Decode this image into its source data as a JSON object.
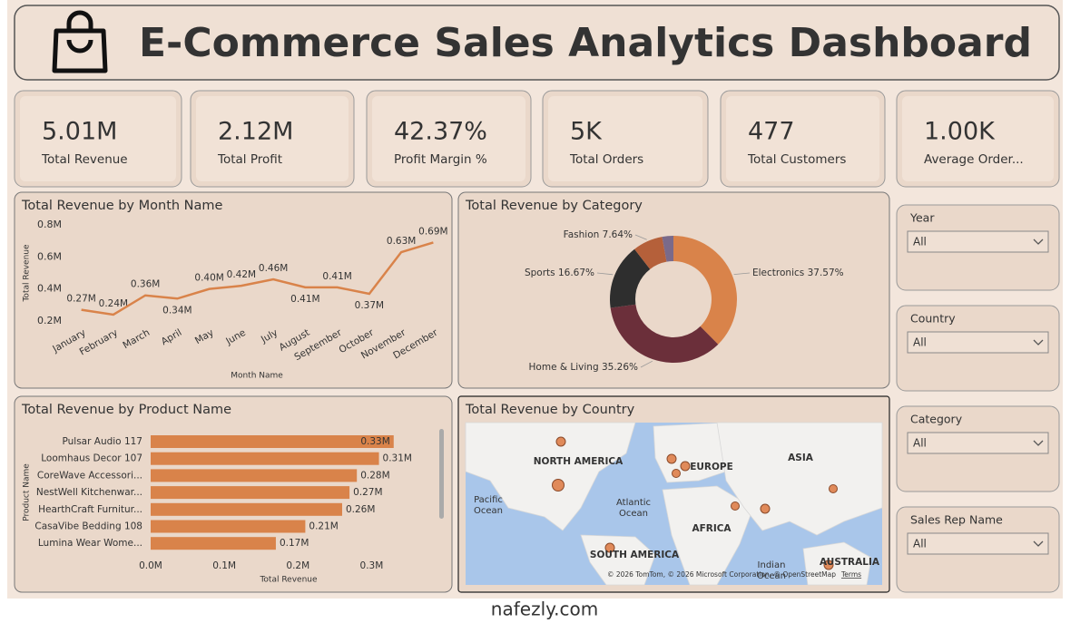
{
  "header": {
    "title": "E-Commerce Sales Analytics Dashboard"
  },
  "kpis": [
    {
      "value": "5.01M",
      "label": "Total Revenue"
    },
    {
      "value": "2.12M",
      "label": "Total Profit"
    },
    {
      "value": "42.37%",
      "label": "Profit Margin %"
    },
    {
      "value": "5K",
      "label": "Total Orders"
    },
    {
      "value": "477",
      "label": "Total Customers"
    },
    {
      "value": "1.00K",
      "label": "Average Order..."
    }
  ],
  "chart_data": [
    {
      "type": "line",
      "title": "Total Revenue by Month Name",
      "x_label": "Month Name",
      "y_label": "Total Revenue",
      "categories": [
        "January",
        "February",
        "March",
        "April",
        "May",
        "June",
        "July",
        "August",
        "September",
        "October",
        "November",
        "December"
      ],
      "values": [
        0.27,
        0.24,
        0.36,
        0.34,
        0.4,
        0.42,
        0.46,
        0.41,
        0.41,
        0.37,
        0.63,
        0.69
      ],
      "value_labels": [
        "0.27M",
        "0.24M",
        "0.36M",
        "0.34M",
        "0.40M",
        "0.42M",
        "0.46M",
        "0.41M",
        "0.41M",
        "0.37M",
        "0.63M",
        "0.69M"
      ],
      "color": "#d9834a",
      "ylim": [
        0.2,
        0.8
      ],
      "yticks": [
        {
          "value": 0.2,
          "label": "0.2M"
        },
        {
          "value": 0.4,
          "label": "0.4M"
        },
        {
          "value": 0.6,
          "label": "0.6M"
        },
        {
          "value": 0.8,
          "label": "0.8M"
        }
      ],
      "grid": false
    },
    {
      "type": "donut",
      "title": "Total Revenue by Category",
      "categories": [
        "Electronics",
        "Home & Living",
        "Sports",
        "Fashion",
        null
      ],
      "values": [
        37.57,
        35.26,
        16.67,
        7.64,
        2.86
      ],
      "value_labels": [
        "37.57%",
        "35.26%",
        "16.67%",
        "7.64%",
        null
      ],
      "colors": [
        "#d9834a",
        "#6b2f3a",
        "#2e2e2e",
        "#b5603a",
        "#7a6a8a"
      ]
    },
    {
      "type": "hbar",
      "title": "Total Revenue by Product Name",
      "x_label": "Total Revenue",
      "y_label": "Product Name",
      "categories": [
        "Pulsar Audio 117",
        "Loomhaus Decor 107",
        "CoreWave Accessori...",
        "NestWell Kitchenwar...",
        "HearthCraft Furnitur...",
        "CasaVibe Bedding 108",
        "Lumina Wear Wome..."
      ],
      "values": [
        0.33,
        0.31,
        0.28,
        0.27,
        0.26,
        0.21,
        0.17
      ],
      "value_labels": [
        "0.33M",
        "0.31M",
        "0.28M",
        "0.27M",
        "0.26M",
        "0.21M",
        "0.17M"
      ],
      "color": "#d9834a",
      "xlim": [
        0,
        0.35
      ],
      "xticks": [
        {
          "value": 0,
          "label": "0.0M"
        },
        {
          "value": 0.1,
          "label": "0.1M"
        },
        {
          "value": 0.2,
          "label": "0.2M"
        },
        {
          "value": 0.3,
          "label": "0.3M"
        }
      ]
    }
  ],
  "map": {
    "title": "Total Revenue by Country",
    "labels": [
      "NORTH AMERICA",
      "EUROPE",
      "ASIA",
      "AFRICA",
      "SOUTH AMERICA",
      "AUSTRALIA"
    ],
    "oceans": [
      "Pacific Ocean",
      "Atlantic Ocean",
      "Indian Ocean"
    ],
    "attribution": "© 2026 TomTom, © 2026 Microsoft Corporation, © OpenStreetMap",
    "terms": "Terms"
  },
  "slicers": [
    {
      "title": "Year",
      "value": "All"
    },
    {
      "title": "Country",
      "value": "All"
    },
    {
      "title": "Category",
      "value": "All"
    },
    {
      "title": "Sales Rep Name",
      "value": "All"
    }
  ],
  "watermark": "nafezly.com"
}
